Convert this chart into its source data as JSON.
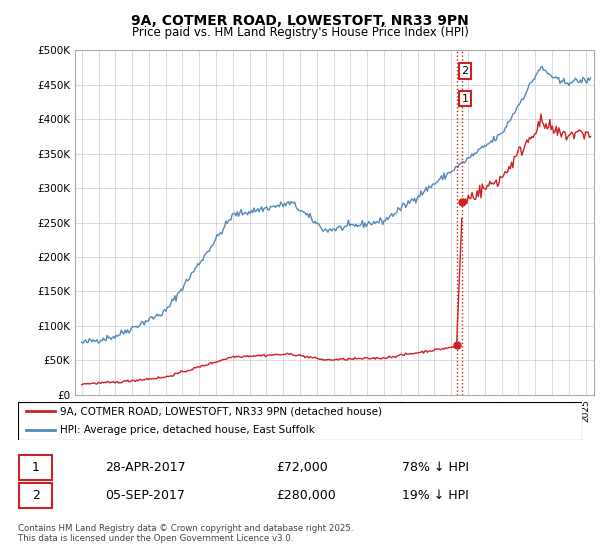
{
  "title_line1": "9A, COTMER ROAD, LOWESTOFT, NR33 9PN",
  "title_line2": "Price paid vs. HM Land Registry's House Price Index (HPI)",
  "ylim": [
    0,
    500000
  ],
  "yticks": [
    0,
    50000,
    100000,
    150000,
    200000,
    250000,
    300000,
    350000,
    400000,
    450000,
    500000
  ],
  "ytick_labels": [
    "£0",
    "£50K",
    "£100K",
    "£150K",
    "£200K",
    "£250K",
    "£300K",
    "£350K",
    "£400K",
    "£450K",
    "£500K"
  ],
  "xlim_start": 1994.6,
  "xlim_end": 2025.5,
  "sale1_date": 2017.32,
  "sale1_price": 72000,
  "sale2_date": 2017.67,
  "sale2_price": 280000,
  "hpi_color": "#5588bb",
  "price_color": "#cc2222",
  "annotation_box_color": "#cc2222",
  "legend_label_red": "9A, COTMER ROAD, LOWESTOFT, NR33 9PN (detached house)",
  "legend_label_blue": "HPI: Average price, detached house, East Suffolk",
  "table_row1": [
    "1",
    "28-APR-2017",
    "£72,000",
    "78% ↓ HPI"
  ],
  "table_row2": [
    "2",
    "05-SEP-2017",
    "£280,000",
    "19% ↓ HPI"
  ],
  "footnote": "Contains HM Land Registry data © Crown copyright and database right 2025.\nThis data is licensed under the Open Government Licence v3.0.",
  "background_color": "#ffffff",
  "grid_color": "#cccccc"
}
